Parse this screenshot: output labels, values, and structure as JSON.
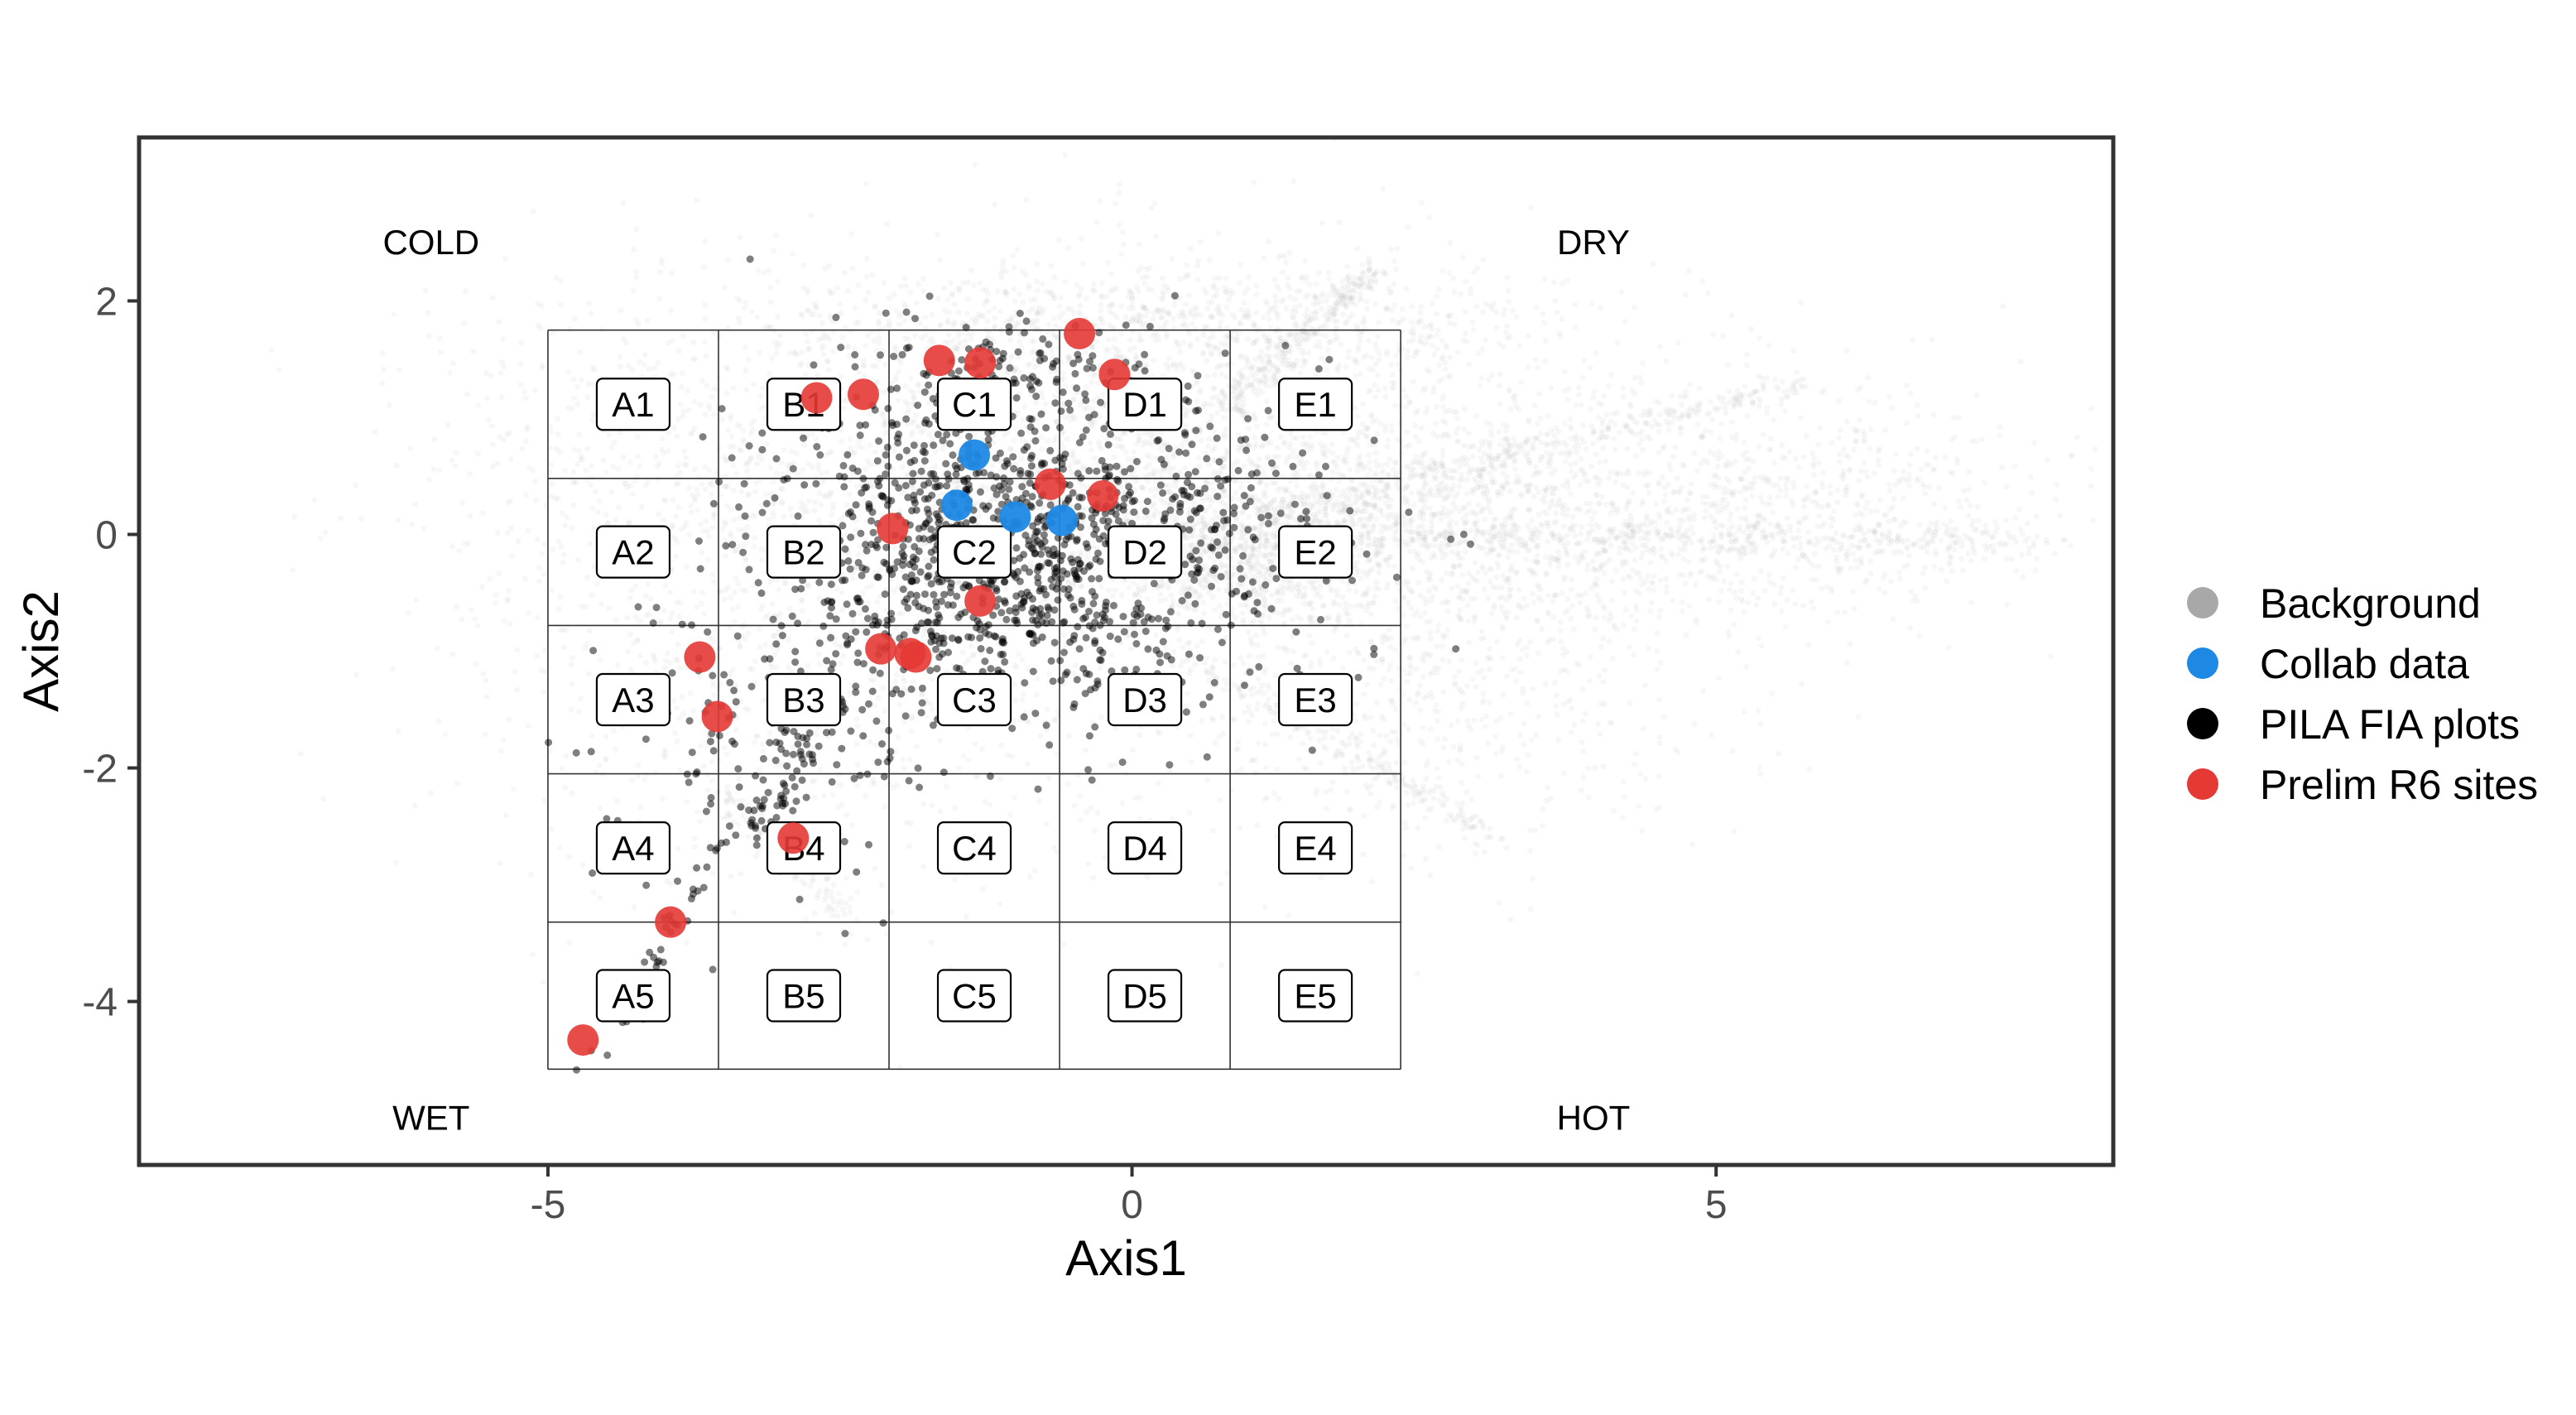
{
  "chart_data": {
    "type": "scatter",
    "xlabel": "Axis1",
    "ylabel": "Axis2",
    "xlim": [
      -8.5,
      8.4
    ],
    "ylim": [
      -5.4,
      3.4
    ],
    "xticks": [
      {
        "value": -5,
        "label": "-5"
      },
      {
        "value": 0,
        "label": "0"
      },
      {
        "value": 5,
        "label": "5"
      }
    ],
    "yticks": [
      {
        "value": 2,
        "label": "2"
      },
      {
        "value": 0,
        "label": "0"
      },
      {
        "value": -2,
        "label": "-2"
      },
      {
        "value": -4,
        "label": "-4"
      }
    ],
    "grid": false,
    "legend_position": "right",
    "corner_labels": [
      {
        "text": "COLD",
        "x": -6.0,
        "y": 2.5
      },
      {
        "text": "DRY",
        "x": 3.95,
        "y": 2.5
      },
      {
        "text": "WET",
        "x": -6.0,
        "y": -5.0
      },
      {
        "text": "HOT",
        "x": 3.95,
        "y": -5.0
      }
    ],
    "grid_cells": {
      "x_breaks": [
        -5.0,
        -3.54,
        -2.08,
        -0.62,
        0.84,
        2.3
      ],
      "y_breaks": [
        1.75,
        0.48,
        -0.78,
        -2.05,
        -3.32,
        -4.58
      ],
      "columns": [
        "A",
        "B",
        "C",
        "D",
        "E"
      ],
      "rows": [
        "1",
        "2",
        "3",
        "4",
        "5"
      ],
      "labels": [
        [
          "A1",
          "B1",
          "C1",
          "D1",
          "E1"
        ],
        [
          "A2",
          "B2",
          "C2",
          "D2",
          "E2"
        ],
        [
          "A3",
          "B3",
          "C3",
          "D3",
          "E3"
        ],
        [
          "A4",
          "B4",
          "C4",
          "D4",
          "E4"
        ],
        [
          "A5",
          "B5",
          "C5",
          "D5",
          "E5"
        ]
      ]
    },
    "series": [
      {
        "name": "Background",
        "color": "#bdbdbd",
        "legend_color": "#a8a8a8",
        "distribution": [
          {
            "cx": 0.2,
            "cy": 0.9,
            "sx": 2.3,
            "sy": 0.75,
            "n": 2200
          },
          {
            "cx": 2.7,
            "cy": 0.1,
            "sx": 1.9,
            "sy": 0.45,
            "n": 1500
          },
          {
            "cx": -2.6,
            "cy": -1.0,
            "sx": 1.6,
            "sy": 1.05,
            "n": 1000
          },
          {
            "cx": 0.3,
            "cy": 1.85,
            "sx": 1.7,
            "sy": 0.22,
            "n": 600
          },
          {
            "cx": 2.4,
            "cy": -1.3,
            "sx": 1.3,
            "sy": 0.75,
            "n": 700
          },
          {
            "cx": 5.9,
            "cy": 0.2,
            "sx": 1.1,
            "sy": 0.45,
            "n": 450
          },
          {
            "cx": 1.0,
            "cy": -0.15,
            "sx": 0.7,
            "sy": 0.25,
            "n": 700
          },
          {
            "cx": -4.0,
            "cy": 0.6,
            "sx": 1.2,
            "sy": 0.9,
            "n": 400
          }
        ],
        "streaks": [
          {
            "x0": 0.8,
            "y0": 1.1,
            "x1": 2.1,
            "y1": 2.3,
            "n": 260
          },
          {
            "x0": 1.2,
            "y0": 0.2,
            "x1": 5.8,
            "y1": 1.3,
            "n": 320
          },
          {
            "x0": 2.4,
            "y0": 0.0,
            "x1": 7.8,
            "y1": -0.05,
            "n": 320
          },
          {
            "x0": 0.4,
            "y0": -1.0,
            "x1": 3.1,
            "y1": -2.6,
            "n": 220
          },
          {
            "x0": -3.5,
            "y0": -2.2,
            "x1": -2.4,
            "y1": -3.3,
            "n": 120
          }
        ]
      },
      {
        "name": "PILA FIA plots",
        "color": "#000000",
        "legend_color": "#000000",
        "distribution": [
          {
            "cx": -1.1,
            "cy": -0.15,
            "sx": 1.05,
            "sy": 0.72,
            "n": 1150
          },
          {
            "cx": -1.0,
            "cy": 1.25,
            "sx": 0.75,
            "sy": 0.3,
            "n": 130
          },
          {
            "cx": -3.0,
            "cy": -1.8,
            "sx": 0.8,
            "sy": 0.85,
            "n": 120
          },
          {
            "cx": 0.8,
            "cy": 0.0,
            "sx": 0.75,
            "sy": 0.45,
            "n": 90
          }
        ],
        "streaks": [
          {
            "x0": -2.6,
            "y0": -1.2,
            "x1": -4.6,
            "y1": -4.5,
            "n": 80
          },
          {
            "x0": -2.5,
            "y0": -1.4,
            "x1": -3.2,
            "y1": -2.6,
            "n": 40
          }
        ]
      },
      {
        "name": "Collab data",
        "color": "#1e88e5",
        "legend_color": "#1e88e5",
        "points": [
          {
            "x": -1.35,
            "y": 0.68
          },
          {
            "x": -1.5,
            "y": 0.25
          },
          {
            "x": -1.0,
            "y": 0.15
          },
          {
            "x": -0.6,
            "y": 0.12
          }
        ]
      },
      {
        "name": "Prelim R6 sites",
        "color": "#e53935",
        "legend_color": "#e53935",
        "points": [
          {
            "x": -0.45,
            "y": 1.72
          },
          {
            "x": -1.65,
            "y": 1.49
          },
          {
            "x": -1.3,
            "y": 1.47
          },
          {
            "x": -0.15,
            "y": 1.37
          },
          {
            "x": -2.3,
            "y": 1.2
          },
          {
            "x": -2.7,
            "y": 1.17
          },
          {
            "x": -0.7,
            "y": 0.43
          },
          {
            "x": -0.25,
            "y": 0.33
          },
          {
            "x": -2.05,
            "y": 0.05
          },
          {
            "x": -1.3,
            "y": -0.57
          },
          {
            "x": -2.15,
            "y": -0.98
          },
          {
            "x": -1.9,
            "y": -1.02
          },
          {
            "x": -1.85,
            "y": -1.05
          },
          {
            "x": -3.7,
            "y": -1.05
          },
          {
            "x": -3.55,
            "y": -1.56
          },
          {
            "x": -2.9,
            "y": -2.6
          },
          {
            "x": -3.95,
            "y": -3.32
          },
          {
            "x": -4.7,
            "y": -4.33
          }
        ]
      }
    ]
  }
}
